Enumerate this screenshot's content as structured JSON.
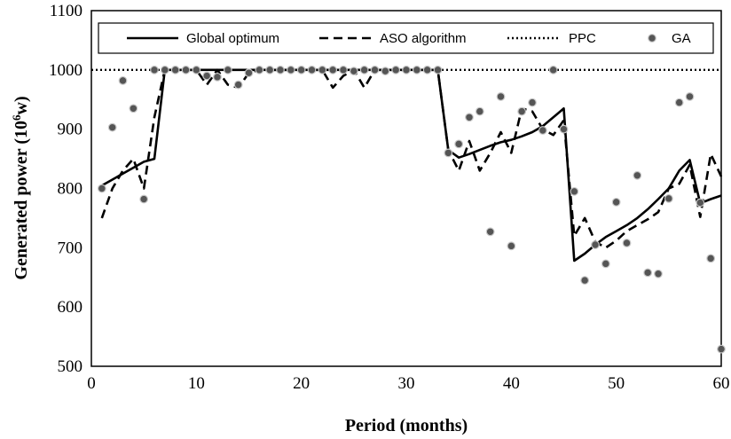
{
  "chart_data": {
    "type": "line",
    "title": "",
    "xlabel": "Period (months)",
    "ylabel_main": "Generated power",
    "ylabel_unit_pre": "(10",
    "ylabel_unit_sup": "6",
    "ylabel_unit_post": "w)",
    "xlim": [
      0,
      60
    ],
    "ylim": [
      500,
      1100
    ],
    "xticks": [
      0,
      10,
      20,
      30,
      40,
      50,
      60
    ],
    "yticks": [
      500,
      600,
      700,
      800,
      900,
      1000,
      1100
    ],
    "grid": false,
    "legend_position": "top",
    "series": [
      {
        "name": "Global optimum",
        "style": "solid",
        "color": "#000000",
        "x": [
          1,
          2,
          3,
          4,
          5,
          6,
          7,
          8,
          9,
          10,
          11,
          12,
          13,
          14,
          15,
          16,
          17,
          18,
          19,
          20,
          21,
          22,
          23,
          24,
          25,
          26,
          27,
          28,
          29,
          30,
          31,
          32,
          33,
          34,
          35,
          36,
          37,
          38,
          39,
          40,
          41,
          42,
          43,
          44,
          45,
          46,
          47,
          48,
          49,
          50,
          51,
          52,
          53,
          54,
          55,
          56,
          57,
          58,
          59,
          60
        ],
        "values": [
          805,
          815,
          825,
          835,
          845,
          850,
          1000,
          1000,
          1000,
          1000,
          1000,
          1000,
          1000,
          1000,
          1000,
          1000,
          1000,
          1000,
          1000,
          1000,
          1000,
          1000,
          1000,
          1000,
          1000,
          1000,
          1000,
          1000,
          1000,
          1000,
          1000,
          1000,
          1000,
          865,
          852,
          858,
          865,
          872,
          878,
          882,
          888,
          895,
          905,
          920,
          935,
          678,
          690,
          705,
          718,
          728,
          738,
          750,
          765,
          782,
          800,
          830,
          848,
          775,
          782,
          788
        ]
      },
      {
        "name": "ASO algorithm",
        "style": "dashed",
        "color": "#000000",
        "x": [
          1,
          2,
          3,
          4,
          5,
          6,
          7,
          8,
          9,
          10,
          11,
          12,
          13,
          14,
          15,
          16,
          17,
          18,
          19,
          20,
          21,
          22,
          23,
          24,
          25,
          26,
          27,
          28,
          29,
          30,
          31,
          32,
          33,
          34,
          35,
          36,
          37,
          38,
          39,
          40,
          41,
          42,
          43,
          44,
          45,
          46,
          47,
          48,
          49,
          50,
          51,
          52,
          53,
          54,
          55,
          56,
          57,
          58,
          59,
          60
        ],
        "values": [
          750,
          800,
          830,
          850,
          800,
          920,
          1000,
          1000,
          1000,
          1000,
          975,
          1000,
          975,
          970,
          995,
          1000,
          1000,
          1000,
          1000,
          1000,
          1000,
          1000,
          970,
          990,
          1000,
          970,
          1000,
          1000,
          1000,
          1000,
          1000,
          1000,
          1000,
          865,
          830,
          880,
          830,
          860,
          895,
          860,
          935,
          930,
          900,
          890,
          915,
          720,
          750,
          710,
          700,
          712,
          728,
          738,
          748,
          760,
          800,
          808,
          840,
          752,
          858,
          820
        ]
      },
      {
        "name": "PPC",
        "style": "dotted",
        "color": "#000000",
        "x": [
          0,
          60
        ],
        "values": [
          1000,
          1000
        ]
      },
      {
        "name": "GA",
        "style": "markers",
        "color": "#555555",
        "x": [
          1,
          2,
          3,
          4,
          5,
          6,
          7,
          8,
          9,
          10,
          11,
          12,
          13,
          14,
          15,
          16,
          17,
          18,
          19,
          20,
          21,
          22,
          23,
          24,
          25,
          26,
          27,
          28,
          29,
          30,
          31,
          32,
          33,
          34,
          35,
          36,
          37,
          38,
          39,
          40,
          41,
          42,
          43,
          44,
          45,
          46,
          47,
          48,
          49,
          50,
          51,
          52,
          53,
          54,
          55,
          56,
          57,
          58,
          59,
          60
        ],
        "values": [
          800,
          903,
          982,
          935,
          782,
          1000,
          1000,
          1000,
          1000,
          1000,
          990,
          988,
          1000,
          975,
          995,
          1000,
          1000,
          1000,
          1000,
          1000,
          1000,
          1000,
          1000,
          1000,
          998,
          1000,
          1000,
          998,
          1000,
          1000,
          1000,
          1000,
          1000,
          860,
          875,
          920,
          930,
          727,
          955,
          703,
          930,
          945,
          898,
          1000,
          900,
          795,
          645,
          705,
          673,
          777,
          708,
          822,
          658,
          656,
          783,
          945,
          955,
          776,
          682,
          529
        ]
      }
    ]
  }
}
